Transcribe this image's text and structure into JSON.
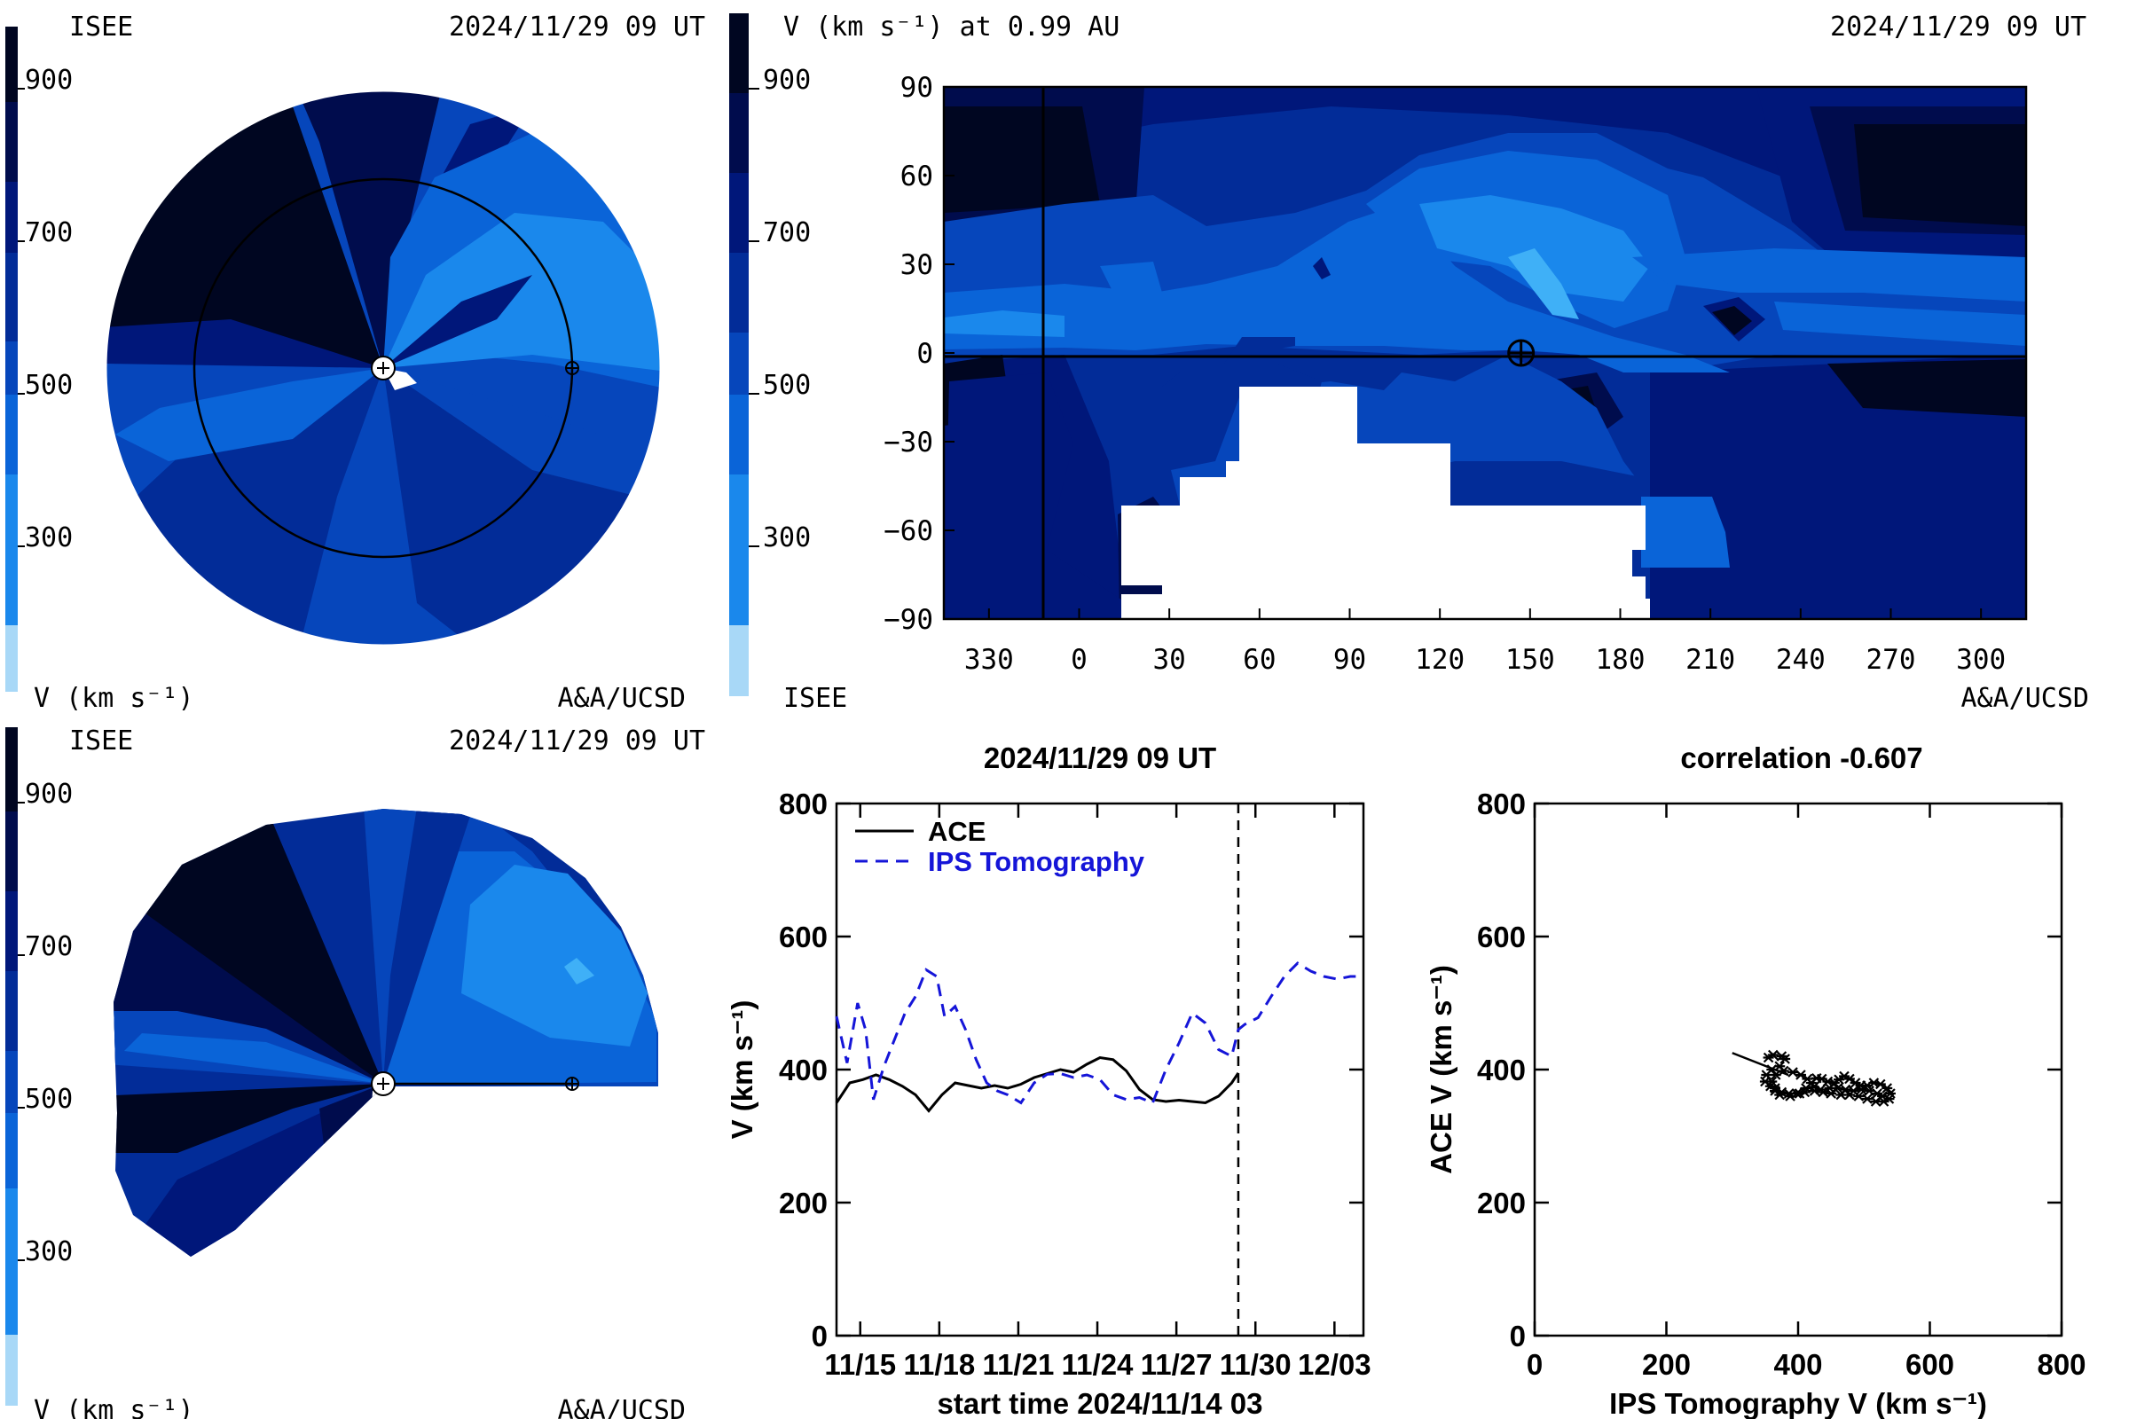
{
  "colors": {
    "levels": [
      "#a8d8f7",
      "#3fb0f7",
      "#1a88ec",
      "#0a64d8",
      "#0646bb",
      "#022c98",
      "#00177a",
      "#000c4d",
      "#000621"
    ],
    "ace": "#000000",
    "ips": "#1515d8"
  },
  "panels": {
    "ecliptic": {
      "top_left": "ISEE",
      "top_right": "2024/11/29 09 UT",
      "bottom_left": "V (km s⁻¹)",
      "bottom_right": "A&A/UCSD",
      "colorbar_ticks": [
        "900",
        "700",
        "500",
        "300"
      ]
    },
    "synoptic": {
      "title_left": "V (km s⁻¹) at 0.99 AU",
      "title_right": "2024/11/29 09 UT",
      "bottom_left": "ISEE",
      "bottom_right": "A&A/UCSD",
      "colorbar_ticks": [
        "900",
        "700",
        "500",
        "300"
      ]
    },
    "meridional": {
      "top_left": "ISEE",
      "top_right": "2024/11/29 09 UT",
      "bottom_left": "V (km s⁻¹)",
      "bottom_right": "A&A/UCSD",
      "colorbar_ticks": [
        "900",
        "700",
        "500",
        "300"
      ]
    }
  },
  "chart_data": [
    {
      "type": "heatmap",
      "title": "V (km s⁻¹) at 0.99 AU",
      "subtitle": "2024/11/29 09 UT",
      "x_tick_labels": [
        "330",
        "0",
        "30",
        "60",
        "90",
        "120",
        "150",
        "180",
        "210",
        "240",
        "270",
        "300"
      ],
      "y_tick_labels": [
        "90",
        "60",
        "30",
        "0",
        "−30",
        "−60",
        "−90"
      ],
      "xlim": [
        315,
        675
      ],
      "ylim": [
        -90,
        90
      ],
      "earth_longitude": 147,
      "earth_latitude": 0
    },
    {
      "type": "line",
      "title": "2024/11/29 09 UT",
      "xlabel": "start time 2024/11/14 03",
      "ylabel": "V (km s⁻¹)",
      "ylim": [
        0,
        800
      ],
      "xlim": [
        0,
        20
      ],
      "y_ticks": [
        0,
        200,
        400,
        600,
        800
      ],
      "x_ticks": [
        {
          "x": 0.9,
          "label": "11/15"
        },
        {
          "x": 3.9,
          "label": "11/18"
        },
        {
          "x": 6.9,
          "label": "11/21"
        },
        {
          "x": 9.9,
          "label": "11/24"
        },
        {
          "x": 12.9,
          "label": "11/27"
        },
        {
          "x": 15.9,
          "label": "11/30"
        },
        {
          "x": 18.9,
          "label": "12/03"
        }
      ],
      "current_time": 15.25,
      "series": [
        {
          "name": "ACE",
          "x": [
            0,
            0.5,
            1,
            1.5,
            2,
            2.5,
            3,
            3.5,
            4,
            4.5,
            5,
            5.5,
            6,
            6.5,
            7,
            7.5,
            8,
            8.5,
            9,
            9.5,
            10,
            10.5,
            11,
            11.5,
            12,
            12.5,
            13,
            13.5,
            14,
            14.5,
            15,
            15.25
          ],
          "y": [
            350,
            380,
            385,
            392,
            385,
            375,
            362,
            338,
            362,
            380,
            376,
            372,
            376,
            372,
            378,
            388,
            394,
            400,
            396,
            408,
            418,
            415,
            398,
            370,
            355,
            352,
            354,
            352,
            350,
            360,
            380,
            395
          ]
        },
        {
          "name": "IPS Tomography",
          "x": [
            0,
            0.4,
            0.8,
            1.1,
            1.4,
            1.8,
            2.2,
            2.6,
            3,
            3.4,
            3.8,
            4.1,
            4.5,
            4.9,
            5.3,
            5.7,
            6.1,
            6.5,
            7,
            7.5,
            8,
            8.5,
            9,
            9.5,
            10,
            10.5,
            11,
            11.5,
            12,
            12.5,
            13,
            13.5,
            14,
            14.5,
            15,
            15.25,
            15.5,
            16,
            16.5,
            17,
            17.5,
            18,
            18.5,
            19,
            19.5,
            19.9
          ],
          "y": [
            480,
            410,
            500,
            460,
            355,
            405,
            445,
            485,
            510,
            550,
            540,
            480,
            495,
            460,
            415,
            380,
            368,
            362,
            350,
            380,
            393,
            394,
            388,
            392,
            385,
            362,
            355,
            358,
            350,
            400,
            440,
            485,
            470,
            430,
            420,
            460,
            468,
            478,
            510,
            540,
            560,
            548,
            540,
            536,
            540,
            540
          ]
        }
      ],
      "legend": "top-left"
    },
    {
      "type": "scatter",
      "title": "correlation -0.607",
      "xlabel": "IPS Tomography V (km s⁻¹)",
      "ylabel": "ACE V (km s⁻¹)",
      "xlim": [
        0,
        800
      ],
      "ylim": [
        0,
        800
      ],
      "ticks": [
        0,
        200,
        400,
        600,
        800
      ],
      "fit_line": [
        [
          300,
          425
        ],
        [
          385,
          392
        ]
      ],
      "points": [
        [
          355,
          418
        ],
        [
          362,
          422
        ],
        [
          375,
          420
        ],
        [
          380,
          416
        ],
        [
          372,
          405
        ],
        [
          360,
          400
        ],
        [
          352,
          392
        ],
        [
          350,
          382
        ],
        [
          358,
          375
        ],
        [
          365,
          368
        ],
        [
          372,
          362
        ],
        [
          388,
          360
        ],
        [
          402,
          364
        ],
        [
          412,
          372
        ],
        [
          420,
          380
        ],
        [
          428,
          387
        ],
        [
          436,
          386
        ],
        [
          445,
          382
        ],
        [
          455,
          380
        ],
        [
          462,
          385
        ],
        [
          470,
          390
        ],
        [
          478,
          386
        ],
        [
          487,
          380
        ],
        [
          495,
          376
        ],
        [
          505,
          376
        ],
        [
          515,
          380
        ],
        [
          525,
          378
        ],
        [
          535,
          372
        ],
        [
          540,
          364
        ],
        [
          538,
          356
        ],
        [
          530,
          352
        ],
        [
          518,
          352
        ],
        [
          505,
          356
        ],
        [
          492,
          360
        ],
        [
          478,
          362
        ],
        [
          465,
          362
        ],
        [
          450,
          364
        ],
        [
          438,
          366
        ],
        [
          425,
          368
        ],
        [
          410,
          366
        ],
        [
          398,
          364
        ],
        [
          386,
          364
        ],
        [
          375,
          366
        ],
        [
          365,
          372
        ],
        [
          360,
          382
        ],
        [
          366,
          392
        ],
        [
          378,
          398
        ],
        [
          392,
          396
        ],
        [
          404,
          392
        ],
        [
          414,
          386
        ],
        [
          424,
          374
        ],
        [
          434,
          370
        ],
        [
          448,
          372
        ],
        [
          460,
          372
        ],
        [
          472,
          370
        ],
        [
          484,
          368
        ],
        [
          496,
          370
        ],
        [
          508,
          368
        ],
        [
          520,
          364
        ],
        [
          528,
          360
        ]
      ]
    }
  ]
}
